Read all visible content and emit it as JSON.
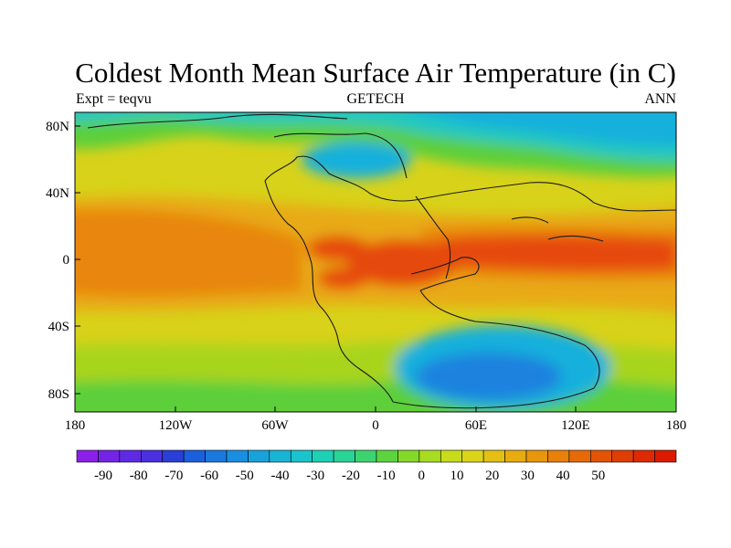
{
  "title": "Coldest Month Mean Surface Air Temperature (in C)",
  "subtitle_left": "Expt = teqvu",
  "subtitle_center": "GETECH",
  "subtitle_right": "ANN",
  "x_ticks": [
    "180",
    "120W",
    "60W",
    "0",
    "60E",
    "120E",
    "180"
  ],
  "y_ticks": [
    "80N",
    "40N",
    "0",
    "40S",
    "80S"
  ],
  "colorbar": {
    "labels": [
      "-90",
      "-80",
      "-70",
      "-60",
      "-50",
      "-40",
      "-30",
      "-20",
      "-10",
      "0",
      "10",
      "20",
      "30",
      "40",
      "50"
    ],
    "colors": [
      "#8b20e8",
      "#7424e6",
      "#5f2ae4",
      "#4a30e0",
      "#2a3ed8",
      "#1a60dc",
      "#1a78de",
      "#1a8ee0",
      "#18a2dc",
      "#18b4d6",
      "#1ac4cc",
      "#1ed0b4",
      "#28d496",
      "#3cd470",
      "#5cd440",
      "#84d828",
      "#a8dc20",
      "#c8dc1c",
      "#dcd418",
      "#e4c014",
      "#e8ac10",
      "#e8960c",
      "#e8800a",
      "#e66a08",
      "#e45406",
      "#e03e04",
      "#de2a02",
      "#dc1a00"
    ]
  },
  "colors": {
    "deep_orange": "#e64a0a",
    "orange": "#e8860c",
    "light_orange": "#e8aa12",
    "yellow": "#d8d21a",
    "yellow_green": "#a8d41c",
    "green": "#5ccf3a",
    "teal": "#20c8c0",
    "cyan": "#18b0dc",
    "blue": "#1a82de",
    "coastline": "#1a1a1a"
  }
}
